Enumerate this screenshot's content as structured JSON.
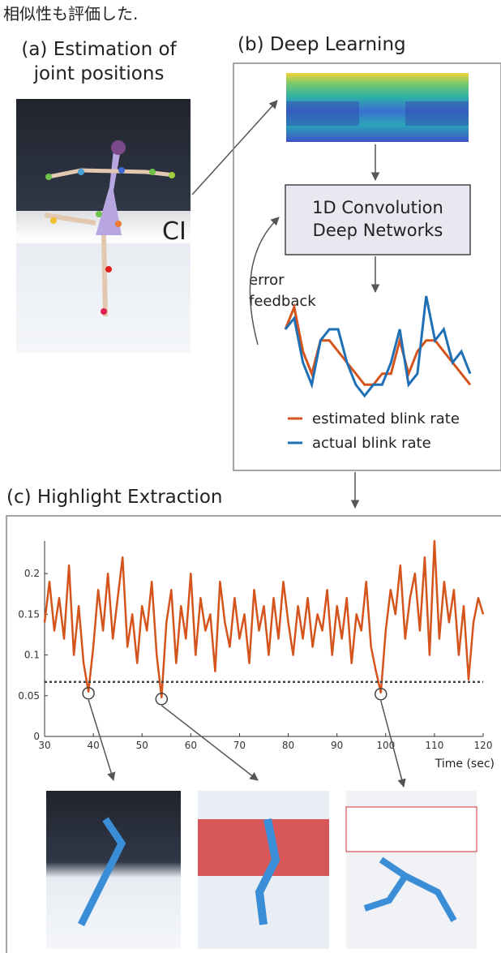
{
  "caption": "相似性も評価した.",
  "panel_a": {
    "title": [
      "(a) Estimation of",
      "joint positions"
    ]
  },
  "panel_b": {
    "title": "(b) Deep Learning",
    "network_label": [
      "1D Convolution",
      "Deep  Networks"
    ],
    "feedback_label": [
      "error",
      "feedback"
    ],
    "chart_data": {
      "type": "line",
      "series": [
        {
          "name": "estimated blink rate",
          "color": "#d4541c",
          "values": [
            6,
            8,
            4,
            2,
            5,
            5,
            4,
            3,
            2,
            1,
            1,
            2,
            2,
            5,
            2,
            4,
            5,
            5,
            4,
            3,
            2,
            1
          ]
        },
        {
          "name": "actual blink rate",
          "color": "#1f6fb4",
          "values": [
            6,
            7,
            3,
            1,
            5,
            6,
            6,
            3,
            1,
            0,
            1,
            1,
            3,
            6,
            1,
            2,
            9,
            5,
            6,
            3,
            4,
            2
          ]
        }
      ]
    }
  },
  "panel_c": {
    "title": "(c) Highlight Extraction",
    "chart_data": {
      "type": "line",
      "x": [
        30,
        31,
        32,
        33,
        34,
        35,
        36,
        37,
        38,
        39,
        40,
        41,
        42,
        43,
        44,
        45,
        46,
        47,
        48,
        49,
        50,
        51,
        52,
        53,
        54,
        55,
        56,
        57,
        58,
        59,
        60,
        61,
        62,
        63,
        64,
        65,
        66,
        67,
        68,
        69,
        70,
        71,
        72,
        73,
        74,
        75,
        76,
        77,
        78,
        79,
        80,
        81,
        82,
        83,
        84,
        85,
        86,
        87,
        88,
        89,
        90,
        91,
        92,
        93,
        94,
        95,
        96,
        97,
        98,
        99,
        100,
        101,
        102,
        103,
        104,
        105,
        106,
        107,
        108,
        109,
        110,
        111,
        112,
        113,
        114,
        115,
        116,
        117,
        118,
        119,
        120
      ],
      "series": [
        {
          "color": "#d4541c",
          "values": [
            0.14,
            0.19,
            0.13,
            0.17,
            0.12,
            0.21,
            0.1,
            0.16,
            0.09,
            0.055,
            0.11,
            0.18,
            0.13,
            0.2,
            0.12,
            0.17,
            0.22,
            0.11,
            0.15,
            0.09,
            0.16,
            0.13,
            0.19,
            0.1,
            0.048,
            0.14,
            0.18,
            0.09,
            0.16,
            0.12,
            0.2,
            0.1,
            0.17,
            0.13,
            0.15,
            0.08,
            0.19,
            0.14,
            0.11,
            0.17,
            0.12,
            0.15,
            0.09,
            0.18,
            0.13,
            0.16,
            0.1,
            0.17,
            0.12,
            0.19,
            0.14,
            0.1,
            0.16,
            0.12,
            0.17,
            0.11,
            0.15,
            0.13,
            0.18,
            0.1,
            0.16,
            0.12,
            0.17,
            0.09,
            0.15,
            0.13,
            0.19,
            0.11,
            0.08,
            0.054,
            0.13,
            0.18,
            0.15,
            0.21,
            0.12,
            0.17,
            0.2,
            0.13,
            0.22,
            0.1,
            0.24,
            0.12,
            0.19,
            0.14,
            0.18,
            0.1,
            0.16,
            0.07,
            0.14,
            0.17,
            0.15
          ]
        }
      ],
      "xlim": [
        30,
        120
      ],
      "ylim": [
        0,
        0.24
      ],
      "xticks": [
        30,
        40,
        50,
        60,
        70,
        80,
        90,
        100,
        110,
        120
      ],
      "yticks": [
        0,
        0.05,
        0.1,
        0.15,
        0.2
      ],
      "xlabel": "Time (sec)",
      "threshold": 0.067,
      "highlights": [
        39,
        54,
        99
      ]
    }
  }
}
